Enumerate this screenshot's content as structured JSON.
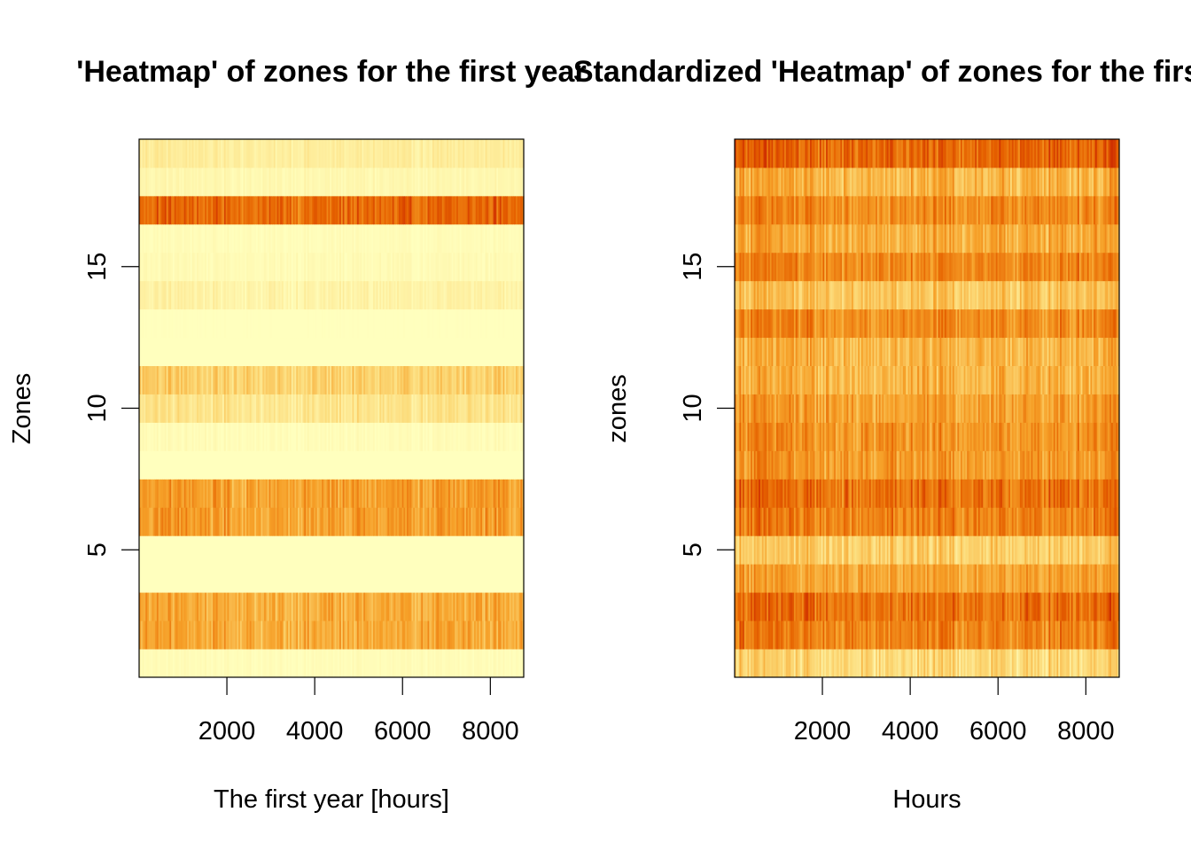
{
  "chart_data": [
    {
      "type": "heatmap",
      "title": "'Heatmap' of zones for the first year",
      "xlabel": "The first year [hours]",
      "ylabel": "Zones",
      "x_ticks": [
        2000,
        4000,
        6000,
        8000
      ],
      "y_ticks": [
        5,
        10,
        15
      ],
      "xlim": [
        1,
        8760
      ],
      "ylim": [
        0.5,
        19.5
      ],
      "zones": [
        1,
        2,
        3,
        4,
        5,
        6,
        7,
        8,
        9,
        10,
        11,
        12,
        13,
        14,
        15,
        16,
        17,
        18,
        19
      ],
      "zone_intensity": [
        0.02,
        0.45,
        0.45,
        0.0,
        0.0,
        0.5,
        0.5,
        0.0,
        0.02,
        0.18,
        0.28,
        0.0,
        0.0,
        0.08,
        0.03,
        0.02,
        0.72,
        0.05,
        0.12
      ],
      "zone_variability": [
        0.03,
        0.2,
        0.2,
        0.0,
        0.0,
        0.22,
        0.22,
        0.0,
        0.04,
        0.14,
        0.18,
        0.0,
        0.01,
        0.08,
        0.04,
        0.03,
        0.22,
        0.05,
        0.08
      ],
      "color_scale": "heat"
    },
    {
      "type": "heatmap",
      "title": "Standardized 'Heatmap' of zones for the first year",
      "xlabel": "Hours",
      "ylabel": "zones",
      "x_ticks": [
        2000,
        4000,
        6000,
        8000
      ],
      "y_ticks": [
        5,
        10,
        15
      ],
      "xlim": [
        1,
        8760
      ],
      "ylim": [
        0.5,
        19.5
      ],
      "zones": [
        1,
        2,
        3,
        4,
        5,
        6,
        7,
        8,
        9,
        10,
        11,
        12,
        13,
        14,
        15,
        16,
        17,
        18,
        19
      ],
      "zone_intensity": [
        0.25,
        0.62,
        0.68,
        0.48,
        0.3,
        0.62,
        0.68,
        0.52,
        0.55,
        0.5,
        0.42,
        0.42,
        0.58,
        0.35,
        0.6,
        0.45,
        0.58,
        0.42,
        0.72
      ],
      "zone_variability": [
        0.22,
        0.26,
        0.26,
        0.22,
        0.22,
        0.26,
        0.26,
        0.24,
        0.25,
        0.24,
        0.24,
        0.24,
        0.25,
        0.22,
        0.25,
        0.24,
        0.25,
        0.24,
        0.24
      ],
      "color_scale": "heat"
    }
  ]
}
